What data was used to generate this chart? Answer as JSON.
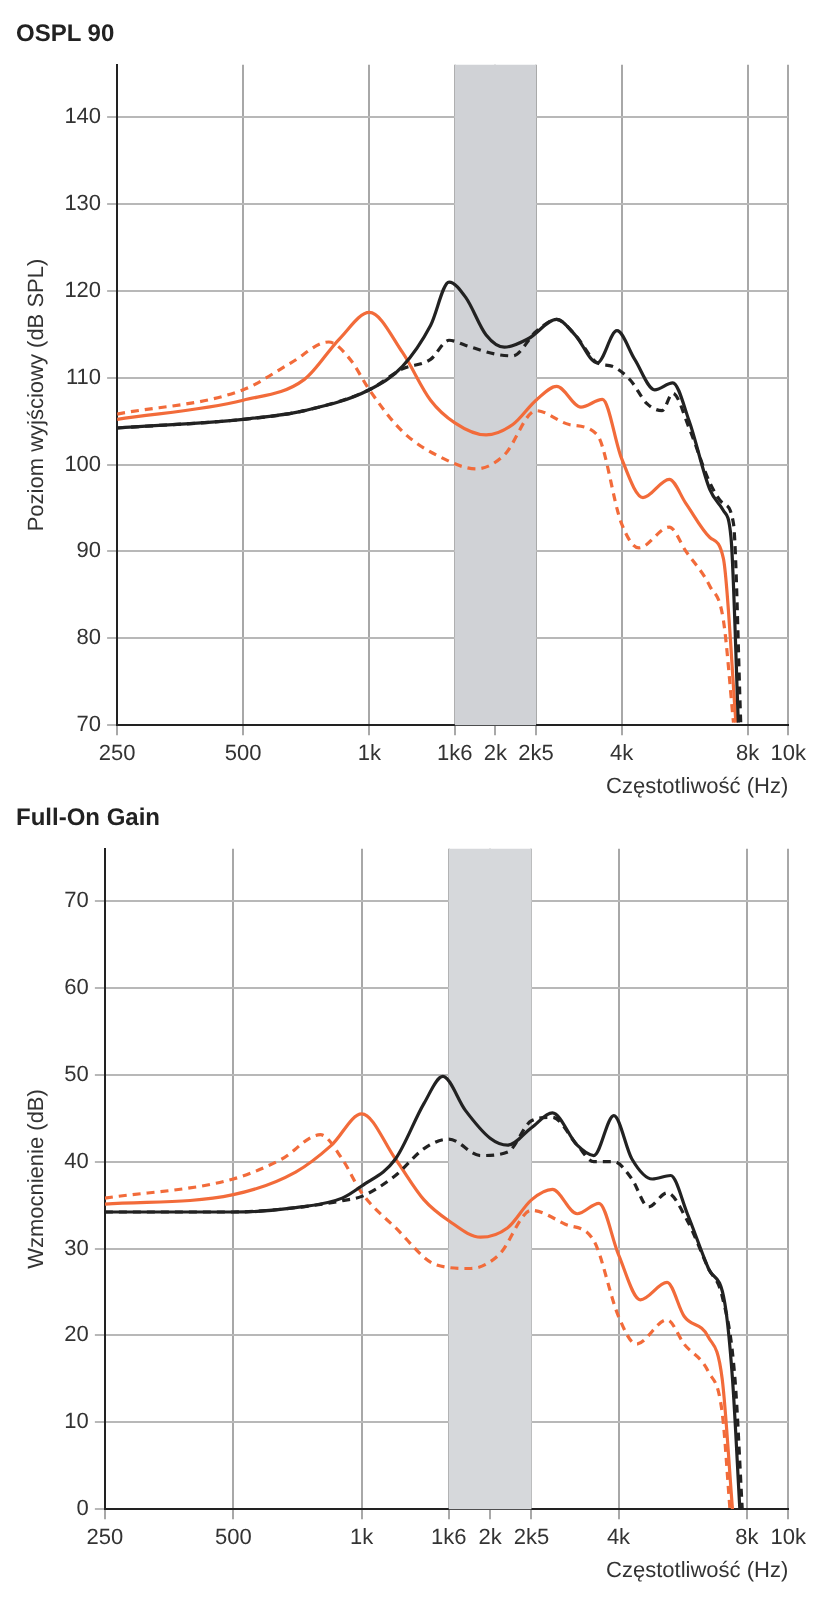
{
  "chart_data": [
    {
      "type": "line",
      "title": "OSPL 90",
      "xlabel": "Częstotliwość (Hz)",
      "ylabel": "Poziom wyjściowy (dB SPL)",
      "log": "x",
      "grid": true,
      "xlim": [
        250,
        10000
      ],
      "xticks": [
        {
          "value": 250,
          "label": "250"
        },
        {
          "value": 500,
          "label": "500"
        },
        {
          "value": 1000,
          "label": "1k"
        },
        {
          "value": 1600,
          "label": "1k6"
        },
        {
          "value": 2000,
          "label": "2k"
        },
        {
          "value": 2500,
          "label": "2k5"
        },
        {
          "value": 4000,
          "label": "4k"
        },
        {
          "value": 8000,
          "label": "8k"
        },
        {
          "value": 10000,
          "label": "10k"
        }
      ],
      "ylim": [
        70,
        146
      ],
      "yticks": [
        70,
        80,
        90,
        100,
        110,
        120,
        130,
        140
      ],
      "bands": [
        {
          "axis": "x",
          "from": 1600,
          "to": 2500,
          "color": "#d0d2d6"
        }
      ],
      "series": [
        {
          "color": "#222222",
          "line_style": "solid",
          "x": [
            250,
            500,
            700,
            1000,
            1200,
            1400,
            1550,
            1700,
            1900,
            2100,
            2400,
            2800,
            3100,
            3500,
            3900,
            4300,
            4800,
            5300,
            5800,
            6500,
            7000,
            7300,
            7600
          ],
          "values": [
            104.2,
            105.2,
            106.2,
            108.6,
            111.3,
            116,
            121,
            119.2,
            114.9,
            113.5,
            114.5,
            116.7,
            114.9,
            111.7,
            115.4,
            112.1,
            108.6,
            109.4,
            105,
            97.1,
            94.7,
            91.6,
            70.3
          ]
        },
        {
          "color": "#222222",
          "line_style": "dashed",
          "x": [
            250,
            500,
            700,
            1000,
            1200,
            1400,
            1550,
            1700,
            2000,
            2200,
            2500,
            2800,
            3100,
            3500,
            3800,
            4200,
            4600,
            5000,
            5300,
            5800,
            6500,
            7000,
            7400,
            7700
          ],
          "values": [
            104.2,
            105.2,
            106.2,
            108.6,
            111,
            112.1,
            114.3,
            113.7,
            112.7,
            112.5,
            115.3,
            116.7,
            114.9,
            111.7,
            111.3,
            109.7,
            107,
            106.2,
            108.2,
            104.2,
            97.9,
            95.5,
            93.2,
            70.3
          ]
        },
        {
          "color": "#f26b3a",
          "line_style": "solid",
          "x": [
            250,
            500,
            700,
            850,
            1000,
            1200,
            1400,
            1600,
            1900,
            2200,
            2500,
            2800,
            3200,
            3600,
            4000,
            4500,
            5200,
            5700,
            6500,
            7000,
            7500
          ],
          "values": [
            105.2,
            107.4,
            109.8,
            114.5,
            117.5,
            112.9,
            107.4,
            104.8,
            103.4,
            104.6,
            107.4,
            109,
            106.6,
            107.5,
            100.7,
            96.2,
            98.3,
            95.5,
            91.6,
            89.2,
            70.3
          ]
        },
        {
          "color": "#f26b3a",
          "line_style": "dashed",
          "x": [
            250,
            500,
            650,
            800,
            900,
            1000,
            1200,
            1500,
            1800,
            2100,
            2500,
            3000,
            3500,
            4000,
            4400,
            5200,
            5700,
            6500,
            7000,
            7400
          ],
          "values": [
            105.8,
            108.6,
            111.7,
            114.1,
            112.1,
            108.6,
            103.8,
            100.7,
            99.5,
            101.1,
            106.2,
            104.6,
            103.4,
            93.2,
            90.4,
            92.8,
            90,
            86,
            82.1,
            70.3
          ]
        }
      ]
    },
    {
      "type": "line",
      "title": "Full-On Gain",
      "xlabel": "Częstotliwość (Hz)",
      "ylabel": "Wzmocnienie (dB)",
      "log": "x",
      "grid": true,
      "xlim": [
        250,
        10000
      ],
      "xticks": [
        {
          "value": 250,
          "label": "250"
        },
        {
          "value": 500,
          "label": "500"
        },
        {
          "value": 1000,
          "label": "1k"
        },
        {
          "value": 1600,
          "label": "1k6"
        },
        {
          "value": 2000,
          "label": "2k"
        },
        {
          "value": 2500,
          "label": "2k5"
        },
        {
          "value": 4000,
          "label": "4k"
        },
        {
          "value": 8000,
          "label": "8k"
        },
        {
          "value": 10000,
          "label": "10k"
        }
      ],
      "ylim": [
        0,
        76
      ],
      "yticks": [
        0,
        10,
        20,
        30,
        40,
        50,
        60,
        70
      ],
      "bands": [
        {
          "axis": "x",
          "from": 1600,
          "to": 2500,
          "color": "#d6d8db"
        }
      ],
      "series": [
        {
          "color": "#222222",
          "line_style": "solid",
          "x": [
            250,
            500,
            700,
            900,
            1000,
            1200,
            1400,
            1550,
            1750,
            2000,
            2200,
            2500,
            2800,
            3200,
            3500,
            3900,
            4300,
            4800,
            5300,
            5800,
            6500,
            7100,
            7400,
            7700
          ],
          "values": [
            34.2,
            34.2,
            34.7,
            35.8,
            37.2,
            40.3,
            46.7,
            49.8,
            45.9,
            42.7,
            41.9,
            43.9,
            45.6,
            41.9,
            40.7,
            45.3,
            40.3,
            38,
            38.4,
            34,
            27.7,
            23.7,
            15,
            0
          ]
        },
        {
          "color": "#222222",
          "line_style": "dashed",
          "x": [
            250,
            500,
            700,
            900,
            1000,
            1200,
            1400,
            1600,
            1900,
            2200,
            2500,
            2800,
            3200,
            3500,
            3900,
            4300,
            4700,
            5200,
            5800,
            6500,
            7000,
            7500,
            7800
          ],
          "values": [
            34.2,
            34.2,
            34.7,
            35.5,
            36,
            38.4,
            41.5,
            42.6,
            40.7,
            41.1,
            44.7,
            45.1,
            41.9,
            40,
            40,
            38,
            34.8,
            36.4,
            33.2,
            27.7,
            24.5,
            15,
            0
          ]
        },
        {
          "color": "#f26b3a",
          "line_style": "solid",
          "x": [
            250,
            500,
            700,
            850,
            1000,
            1200,
            1400,
            1600,
            1900,
            2200,
            2500,
            2800,
            3200,
            3600,
            4000,
            4500,
            5200,
            5700,
            6500,
            7000,
            7400
          ],
          "values": [
            35.1,
            36.2,
            38.8,
            41.9,
            45.5,
            40.3,
            35.6,
            33.2,
            31.3,
            32.4,
            35.6,
            36.8,
            34,
            35.2,
            29.3,
            24.1,
            26.1,
            22.2,
            19.8,
            15,
            0
          ]
        },
        {
          "color": "#f26b3a",
          "line_style": "dashed",
          "x": [
            250,
            500,
            650,
            800,
            900,
            1000,
            1200,
            1500,
            1800,
            2100,
            2500,
            3000,
            3500,
            4000,
            4400,
            5200,
            5700,
            6500,
            7000,
            7300
          ],
          "values": [
            35.8,
            38,
            40.3,
            43.1,
            40.3,
            36.4,
            32.4,
            28.1,
            27.7,
            29.3,
            34.4,
            32.8,
            30.9,
            22.2,
            19,
            21.8,
            19,
            15.8,
            11.1,
            0
          ]
        }
      ]
    }
  ]
}
